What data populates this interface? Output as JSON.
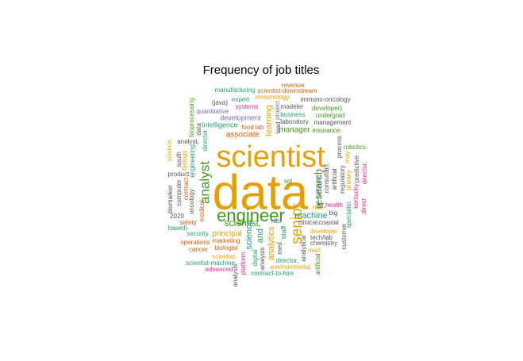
{
  "chart_data": {
    "type": "wordcloud",
    "title": "Frequency of job titles",
    "words": [
      {
        "text": "data",
        "color": "#E6A100"
      },
      {
        "text": "scientist",
        "color": "#E6A100"
      },
      {
        "text": "engineer",
        "color": "#3E9A1B"
      },
      {
        "text": "senior",
        "color": "#E6A100"
      },
      {
        "text": "analyst",
        "color": "#3E9A1B"
      },
      {
        "text": "research",
        "color": "#3E9A1B"
      },
      {
        "text": "scientist,",
        "color": "#3E9A1B"
      },
      {
        "text": "learning",
        "color": "#E6A100"
      },
      {
        "text": "machine",
        "color": "#1B9E77"
      },
      {
        "text": "associate",
        "color": "#D95F02"
      },
      {
        "text": "manager",
        "color": "#3E9A1B"
      },
      {
        "text": "analytics",
        "color": "#E6A100"
      },
      {
        "text": "principal",
        "color": "#E6A100"
      },
      {
        "text": "science",
        "color": "#1B9E77"
      },
      {
        "text": "sr.",
        "color": "#555555"
      },
      {
        "text": "and",
        "color": "#1B9E77"
      },
      {
        "text": "development",
        "color": "#7570B3"
      },
      {
        "text": "intelligence",
        "color": "#1B9E77"
      },
      {
        "text": "staff",
        "color": "#1B9E77"
      },
      {
        "text": "marketing",
        "color": "#D95F02"
      },
      {
        "text": "insurance",
        "color": "#3E9A1B"
      },
      {
        "text": "manufacturing",
        "color": "#1B9E77"
      },
      {
        "text": "revenue",
        "color": "#D95F02"
      },
      {
        "text": "scientist-downstream",
        "color": "#D95F02"
      },
      {
        "text": "expert",
        "color": "#1B9E77"
      },
      {
        "text": "immunology",
        "color": "#E6A100"
      },
      {
        "text": "immuno-oncology",
        "color": "#555555"
      },
      {
        "text": "(java)",
        "color": "#555555"
      },
      {
        "text": "systems",
        "color": "#E7298A"
      },
      {
        "text": "modeler",
        "color": "#555555"
      },
      {
        "text": "developer)",
        "color": "#3E9A1B"
      },
      {
        "text": "quantitative",
        "color": "#7570B3"
      },
      {
        "text": "business",
        "color": "#1B9E77"
      },
      {
        "text": "undergrad",
        "color": "#3E9A1B"
      },
      {
        "text": "laboratory",
        "color": "#555555"
      },
      {
        "text": "management",
        "color": "#555555"
      },
      {
        "text": "bioprocessing",
        "color": "#3E9A1B"
      },
      {
        "text": "food",
        "color": "#D95F02"
      },
      {
        "text": "lab",
        "color": "#D95F02"
      },
      {
        "text": "project",
        "color": "#7570B3"
      },
      {
        "text": "lead",
        "color": "#555555"
      },
      {
        "text": "data",
        "color": "#555555"
      },
      {
        "text": "analyst,",
        "color": "#555555"
      },
      {
        "text": "director",
        "color": "#1B9E77"
      },
      {
        "text": "science,",
        "color": "#E6A100"
      },
      {
        "text": "south",
        "color": "#555555"
      },
      {
        "text": "biology",
        "color": "#E6A100"
      },
      {
        "text": "product",
        "color": "#555555"
      },
      {
        "text": "engineering",
        "color": "#1B9E77"
      },
      {
        "text": "contract",
        "color": "#D95F02"
      },
      {
        "text": "computer",
        "color": "#555555"
      },
      {
        "text": "oncology",
        "color": "#555555"
      },
      {
        "text": "biomarker",
        "color": "#555555"
      },
      {
        "text": "medical",
        "color": "#D95F02"
      },
      {
        "text": "process",
        "color": "#555555"
      },
      {
        "text": "robotics",
        "color": "#3E9A1B"
      },
      {
        "text": "ii,",
        "color": "#555555"
      },
      {
        "text": "software",
        "color": "#7570B3"
      },
      {
        "text": "consultant",
        "color": "#555555"
      },
      {
        "text": "artificial",
        "color": "#555555"
      },
      {
        "text": "regulatory",
        "color": "#555555"
      },
      {
        "text": "privacy",
        "color": "#E6A100"
      },
      {
        "text": "may",
        "color": "#E6A100"
      },
      {
        "text": "predictive",
        "color": "#555555"
      },
      {
        "text": "director,",
        "color": "#E7298A"
      },
      {
        "text": "kentucky",
        "color": "#E7298A"
      },
      {
        "text": "direct",
        "color": "#E7298A"
      },
      {
        "text": "specialist",
        "color": "#1B9E77"
      },
      {
        "text": "sql",
        "color": "#3E9A1B"
      },
      {
        "text": "health",
        "color": "#E7298A"
      },
      {
        "text": "risk",
        "color": "#E6A100"
      },
      {
        "text": "big",
        "color": "#555555"
      },
      {
        "text": "r&d",
        "color": "#7570B3"
      },
      {
        "text": "clinical",
        "color": "#555555"
      },
      {
        "text": "coastal",
        "color": "#555555"
      },
      {
        "text": "2020",
        "color": "#555555"
      },
      {
        "text": "safety",
        "color": "#D95F02"
      },
      {
        "text": "based)",
        "color": "#1B9E77"
      },
      {
        "text": "security",
        "color": "#1B9E77"
      },
      {
        "text": "operations",
        "color": "#D95F02"
      },
      {
        "text": "cancer",
        "color": "#D95F02"
      },
      {
        "text": "biologist",
        "color": "#D95F02"
      },
      {
        "text": "med",
        "color": "#555555"
      },
      {
        "text": "developer",
        "color": "#E6A100"
      },
      {
        "text": "tech/lab",
        "color": "#555555"
      },
      {
        "text": "chemistry",
        "color": "#555555"
      },
      {
        "text": "mart",
        "color": "#E6A100"
      },
      {
        "text": "customer",
        "color": "#555555"
      },
      {
        "text": "analytical",
        "color": "#555555"
      },
      {
        "text": "scientist-",
        "color": "#E6A100"
      },
      {
        "text": "scientist-machine",
        "color": "#1B9E77"
      },
      {
        "text": "digital",
        "color": "#1B9E77"
      },
      {
        "text": "analysis",
        "color": "#555555"
      },
      {
        "text": "director,",
        "color": "#1B9E77"
      },
      {
        "text": "environmental",
        "color": "#E6A100"
      },
      {
        "text": "advanced",
        "color": "#E7298A"
      },
      {
        "text": "platform",
        "color": "#E7298A"
      },
      {
        "text": "analysis",
        "color": "#555555"
      },
      {
        "text": "contract-to-hire",
        "color": "#1B9E77"
      },
      {
        "text": "artificial",
        "color": "#3E9A1B"
      }
    ]
  }
}
